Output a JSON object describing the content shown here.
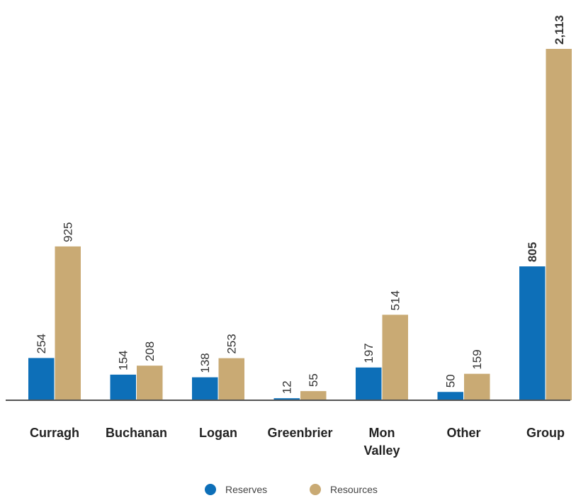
{
  "chart_data": {
    "type": "bar",
    "categories": [
      [
        "Curragh"
      ],
      [
        "Buchanan"
      ],
      [
        "Logan"
      ],
      [
        "Greenbrier"
      ],
      [
        "Mon",
        "Valley"
      ],
      [
        "Other"
      ],
      [
        "Group"
      ]
    ],
    "series": [
      {
        "name": "Reserves",
        "color": "#0d6fb8",
        "values": [
          254,
          154,
          138,
          12,
          197,
          50,
          805
        ],
        "labels": [
          "254",
          "154",
          "138",
          "12",
          "197",
          "50",
          "805"
        ]
      },
      {
        "name": "Resources",
        "color": "#c9aa74",
        "values": [
          925,
          208,
          253,
          55,
          514,
          159,
          2113
        ],
        "labels": [
          "925",
          "208",
          "253",
          "55",
          "514",
          "159",
          "2,113"
        ]
      }
    ],
    "bold_category": "Group",
    "ylim": [
      0,
      2113
    ],
    "grid": false,
    "legend_position": "bottom-center"
  }
}
